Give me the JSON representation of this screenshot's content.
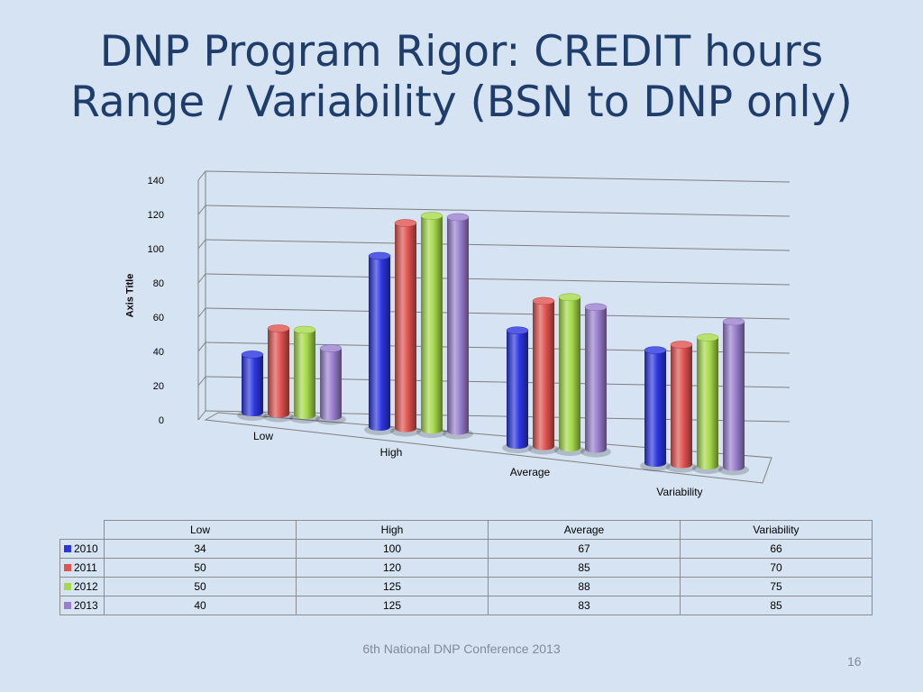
{
  "slide": {
    "title_line1": "DNP Program Rigor: CREDIT hours",
    "title_line2": "Range / Variability (BSN to DNP only)",
    "footer": "6th National DNP Conference  2013",
    "page_number": "16"
  },
  "chart_data": {
    "type": "bar",
    "style": "3d-cylinder",
    "title": "",
    "xlabel": "",
    "ylabel": "Axis Title",
    "ylim": [
      0,
      140
    ],
    "yticks": [
      "0",
      "20",
      "40",
      "60",
      "80",
      "100",
      "120",
      "140"
    ],
    "categories": [
      "Low",
      "High",
      "Average",
      "Variability"
    ],
    "grid": true,
    "legend": "data-table",
    "series": [
      {
        "name": "2010",
        "values": [
          34,
          100,
          67,
          66
        ],
        "color": "#2b35e0"
      },
      {
        "name": "2011",
        "values": [
          50,
          120,
          85,
          70
        ],
        "color": "#e0534f"
      },
      {
        "name": "2012",
        "values": [
          50,
          125,
          88,
          75
        ],
        "color": "#a6d94a"
      },
      {
        "name": "2013",
        "values": [
          40,
          125,
          83,
          85
        ],
        "color": "#9a7fcf"
      }
    ]
  }
}
